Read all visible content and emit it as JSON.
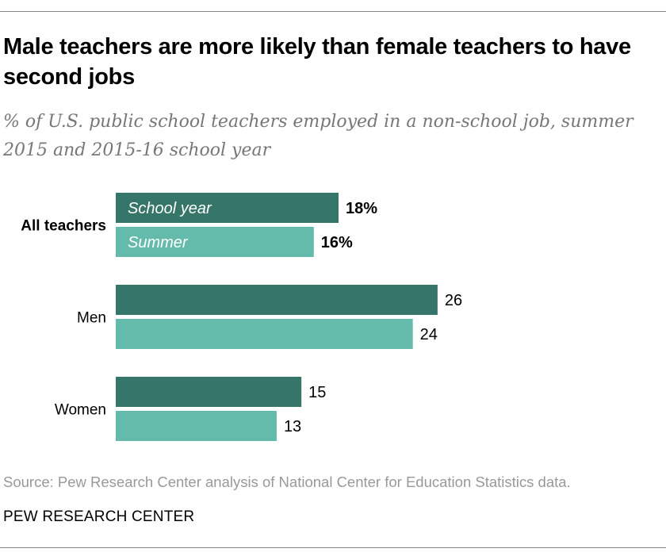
{
  "title": "Male teachers are more likely than female teachers to have second jobs",
  "subtitle": "% of U.S. public school teachers employed in a non-school job, summer 2015 and 2015-16 school year",
  "source": "Source: Pew Research Center analysis of National Center for Education Statistics data.",
  "brand": "PEW RESEARCH CENTER",
  "chart_data": {
    "type": "bar",
    "orientation": "horizontal",
    "categories": [
      "All teachers",
      "Men",
      "Women"
    ],
    "series": [
      {
        "name": "School year",
        "color": "#36766a",
        "values": [
          18,
          26,
          15
        ],
        "labels": [
          "18%",
          "26",
          "15"
        ]
      },
      {
        "name": "Summer",
        "color": "#64bbab",
        "values": [
          16,
          24,
          13
        ],
        "labels": [
          "16%",
          "24",
          "13"
        ]
      }
    ],
    "xlim": [
      0,
      26
    ],
    "grid": false,
    "legend": "inside-first-bars"
  }
}
